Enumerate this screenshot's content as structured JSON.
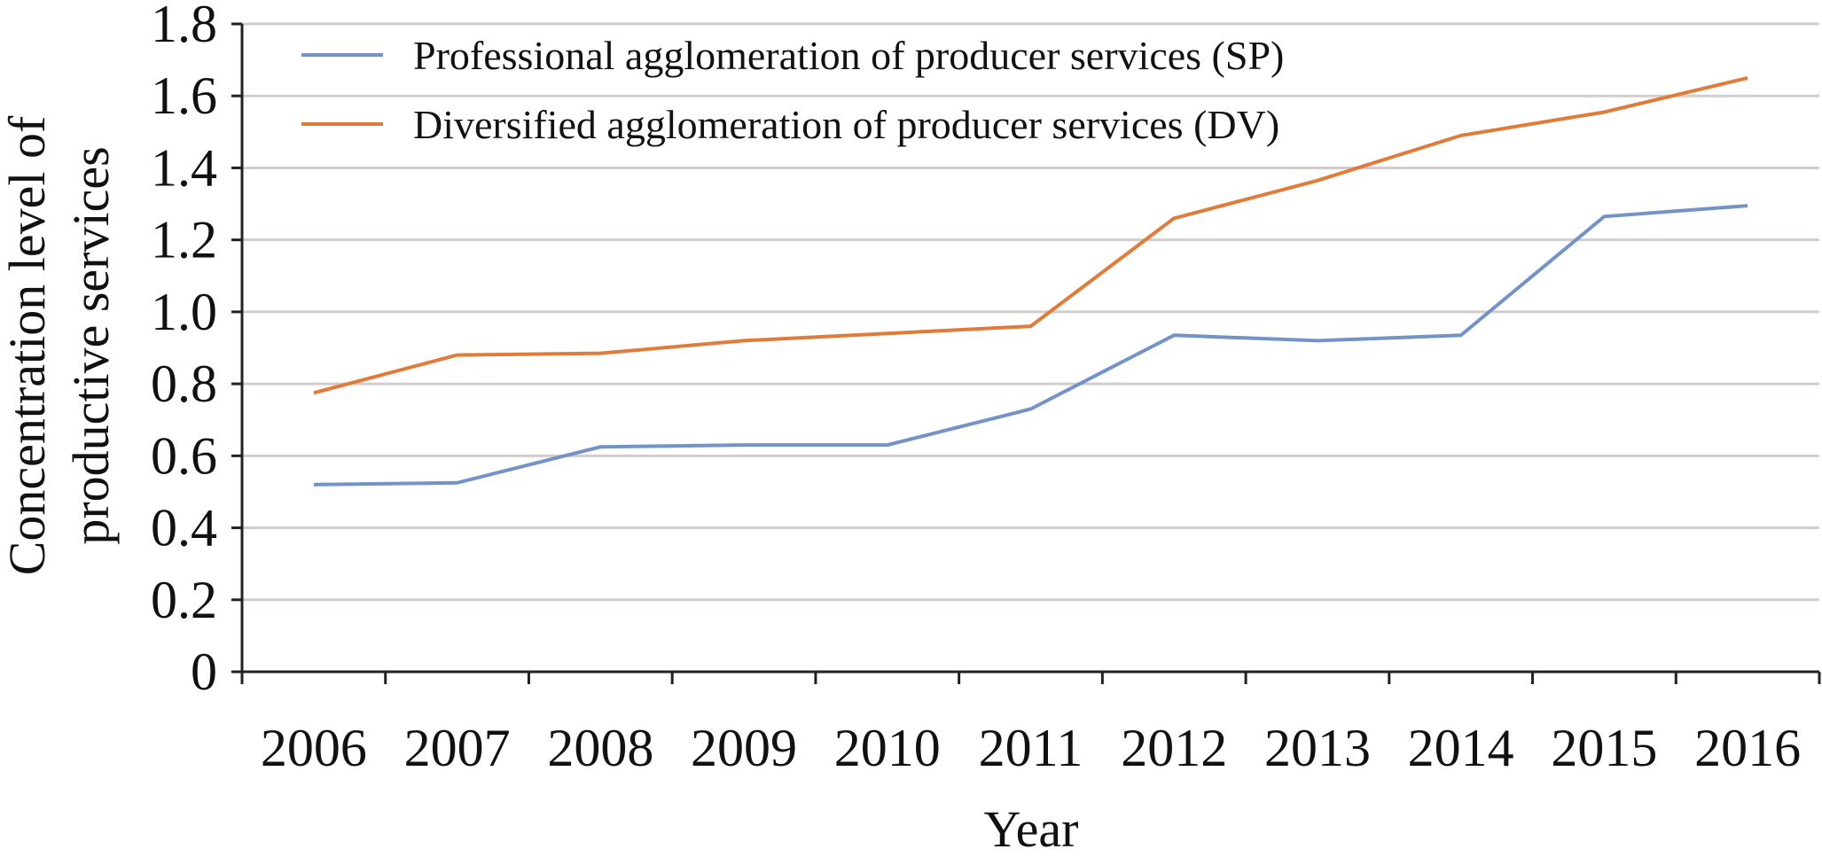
{
  "chart_data": {
    "type": "line",
    "title": "",
    "xlabel": "Year",
    "ylabel": [
      "Concentration level of",
      "productive services"
    ],
    "categories": [
      "2006",
      "2007",
      "2008",
      "2009",
      "2010",
      "2011",
      "2012",
      "2013",
      "2014",
      "2015",
      "2016"
    ],
    "yticks": [
      "0",
      "0.2",
      "0.4",
      "0.6",
      "0.8",
      "1.0",
      "1.2",
      "1.4",
      "1.6",
      "1.8"
    ],
    "ylim": [
      0,
      1.8
    ],
    "grid": true,
    "legend_position": "top-left",
    "series": [
      {
        "name": "Professional agglomeration of producer services (SP)",
        "color": "#7393c8",
        "values": [
          0.52,
          0.525,
          0.625,
          0.63,
          0.63,
          0.73,
          0.935,
          0.92,
          0.935,
          1.265,
          1.295
        ]
      },
      {
        "name": "Diversified agglomeration of producer services (DV)",
        "color": "#e07b39",
        "values": [
          0.775,
          0.88,
          0.885,
          0.92,
          0.94,
          0.96,
          1.26,
          1.365,
          1.49,
          1.555,
          1.65
        ]
      }
    ],
    "colors": {
      "grid": "#d4cccc",
      "axis": "#222222"
    }
  }
}
